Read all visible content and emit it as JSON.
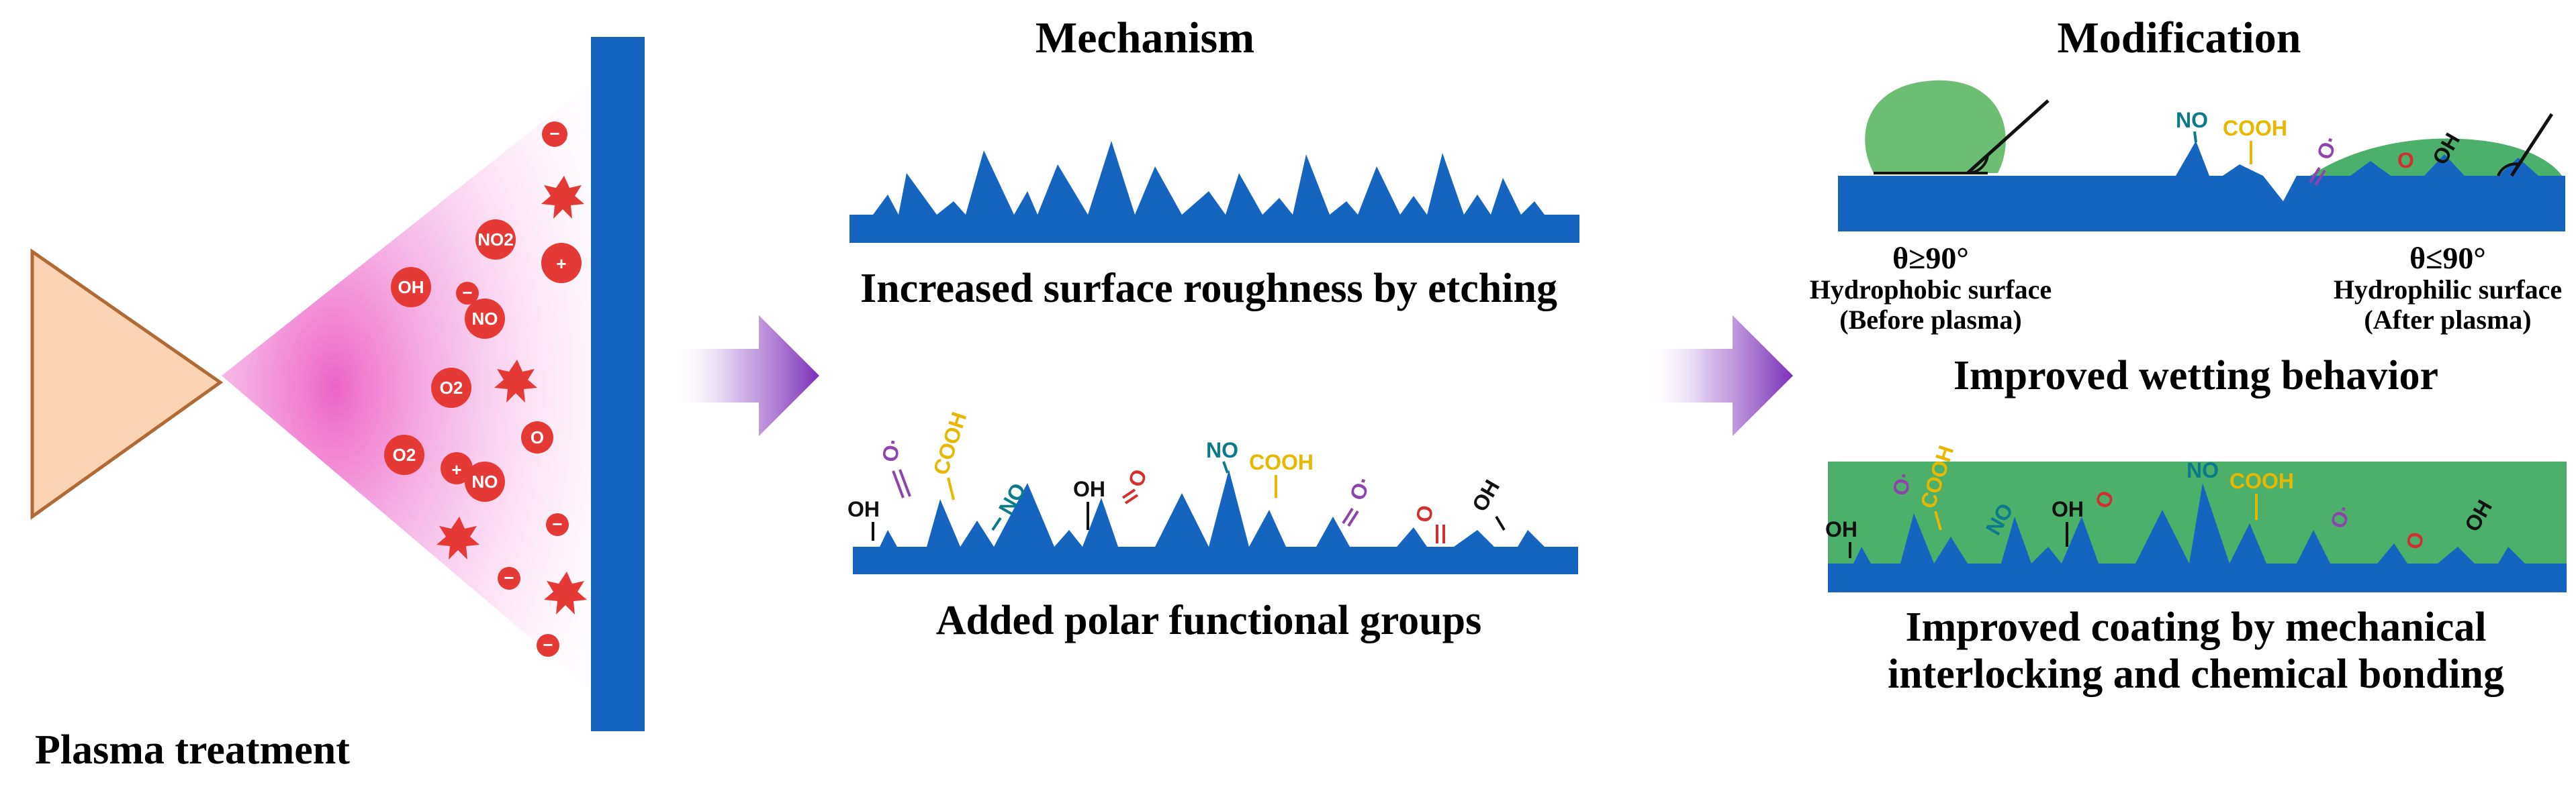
{
  "titles": {
    "mechanism": "Mechanism",
    "modification": "Modification",
    "plasma": "Plasma treatment"
  },
  "captions": {
    "roughness": "Increased surface roughness by etching",
    "polar": "Added polar functional groups",
    "wetting": "Improved wetting behavior",
    "coating_line1": "Improved coating by mechanical",
    "coating_line2": "interlocking and chemical bonding"
  },
  "wetting": {
    "hydrophobic_angle": "θ≥90°",
    "hydrophobic_label": "Hydrophobic surface",
    "hydrophobic_note": "(Before plasma)",
    "hydrophilic_angle": "θ≤90°",
    "hydrophilic_label": "Hydrophilic surface",
    "hydrophilic_note": "(After plasma)"
  },
  "groups": {
    "oh": "OH",
    "cooh": "COOH",
    "no": "NO",
    "o": "O",
    "o_dot": "O·"
  },
  "ions": {
    "oh": "OH",
    "no2": "NO2",
    "no": "NO",
    "o2": "O2",
    "o": "O",
    "plus": "+",
    "minus": "−"
  },
  "colors": {
    "substrate": "#1565c0",
    "coating": "#4caf6a",
    "droplet": "#6cbf72",
    "ion": "#e53935",
    "nozzle_fill": "#fcd3b3",
    "nozzle_stroke": "#b06a35",
    "plasma": "#f06cc9",
    "arrow": "#7b3fb5",
    "cooh": "#e8b800",
    "no": "#0b7a8a",
    "o_dot": "#8e44ad",
    "o_red": "#d32f2f"
  }
}
